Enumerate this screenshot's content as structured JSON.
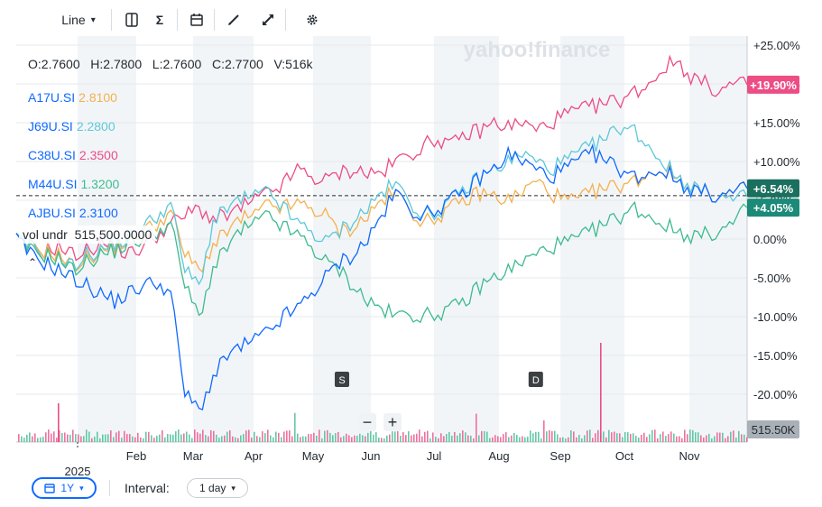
{
  "toolbar": {
    "chart_type_label": "Line",
    "icons": [
      "compare-icon",
      "indicators-icon",
      "events-calendar-icon",
      "draw-icon",
      "fullscreen-icon",
      "settings-icon"
    ]
  },
  "ohlc": {
    "open": "O:2.7600",
    "high": "H:2.7800",
    "low": "L:2.7600",
    "close": "C:2.7700",
    "volume": "V:516k"
  },
  "legend": [
    {
      "symbol": "A17U.SI",
      "value": "2.8100",
      "color": "#f5b04f"
    },
    {
      "symbol": "J69U.SI",
      "value": "2.2800",
      "color": "#5cc8d9"
    },
    {
      "symbol": "C38U.SI",
      "value": "2.3500",
      "color": "#ec4d84"
    },
    {
      "symbol": "M44U.SI",
      "value": "1.3200",
      "color": "#3dbb8e"
    },
    {
      "symbol": "AJBU.SI",
      "value": "2.3100",
      "color": "#0f69ff"
    }
  ],
  "volume_legend": {
    "label": "vol undr",
    "value": "515,500.0000"
  },
  "watermark": "yahoo!finance",
  "footer": {
    "range_label": "1Y",
    "interval_label": "Interval:",
    "interval_value": "1 day",
    "zoom_out": "−",
    "zoom_in": "+"
  },
  "chart_data": {
    "type": "line",
    "title": "",
    "xlabel": "",
    "ylabel": "",
    "x_ticks": [
      "Feb",
      "Mar",
      "Apr",
      "May",
      "Jun",
      "Jul",
      "Aug",
      "Sep",
      "Oct",
      "Nov"
    ],
    "x_year_label": "2025",
    "y_ticks": [
      "+25.00%",
      "+20.00%",
      "+15.00%",
      "+10.00%",
      "+5.00%",
      "0.00%",
      "-5.00%",
      "-10.00%",
      "-15.00%",
      "-20.00%"
    ],
    "ylim": [
      -25,
      25
    ],
    "y_unit": "%",
    "grid": true,
    "reference_line": 5.6,
    "last_value_badges": [
      {
        "text": "+19.90%",
        "value": 19.9,
        "color": "#ec4d84"
      },
      {
        "text": "+6.54%",
        "value": 6.54,
        "color": "#1a6f5e"
      },
      {
        "text": "+4.05%",
        "value": 4.05,
        "color": "#1b8a78"
      }
    ],
    "volume_badge": "515.50K",
    "event_markers": [
      {
        "label": "S",
        "month_index": 3.5
      },
      {
        "label": "D",
        "month_index": 6.6
      }
    ],
    "series": [
      {
        "name": "C38U.SI",
        "color": "#ec4d84",
        "values": [
          0.0,
          -1.0,
          -1.5,
          -1.0,
          -2.0,
          -1.5,
          -0.5,
          -1.0,
          -2.0,
          -1.0,
          0.5,
          2.0,
          3.0,
          4.0,
          2.5,
          3.0,
          4.0,
          5.0,
          6.0,
          7.0,
          9.0,
          8.0,
          7.5,
          8.5,
          9.0,
          8.5,
          8.5,
          10.0,
          11.0,
          12.0,
          13.0,
          12.0,
          13.5,
          14.0,
          15.0,
          14.5,
          15.0,
          14.0,
          15.0,
          16.0,
          16.5,
          17.0,
          17.5,
          18.0,
          19.0,
          20.0,
          22.0,
          23.0,
          21.0,
          20.0,
          19.0,
          20.0,
          19.9
        ]
      },
      {
        "name": "A17U.SI",
        "color": "#f5b04f",
        "values": [
          0.0,
          -1.0,
          -1.5,
          -2.0,
          -3.5,
          -2.5,
          -1.5,
          -1.0,
          0.0,
          1.0,
          2.0,
          3.5,
          -2.0,
          -4.0,
          -1.0,
          1.0,
          2.5,
          3.0,
          4.5,
          4.0,
          4.5,
          4.0,
          3.0,
          1.0,
          1.5,
          3.0,
          5.0,
          6.0,
          4.0,
          2.0,
          3.0,
          4.0,
          5.0,
          6.0,
          5.5,
          5.0,
          6.0,
          7.5,
          6.0,
          5.0,
          5.0,
          6.0,
          6.5,
          7.0,
          7.5,
          8.5,
          9.0,
          8.0,
          7.0,
          6.0,
          5.5,
          6.0,
          6.5
        ]
      },
      {
        "name": "J69U.SI",
        "color": "#5cc8d9",
        "values": [
          0.0,
          -1.0,
          -2.0,
          -2.5,
          -3.5,
          -2.0,
          -1.5,
          -0.5,
          0.0,
          1.5,
          3.0,
          4.5,
          -4.0,
          -6.0,
          2.0,
          4.0,
          5.0,
          5.5,
          6.0,
          4.0,
          2.0,
          1.0,
          -0.5,
          1.0,
          2.5,
          4.0,
          6.0,
          7.0,
          5.0,
          3.0,
          3.5,
          5.0,
          6.5,
          8.0,
          9.0,
          10.0,
          11.0,
          10.0,
          9.0,
          10.0,
          11.0,
          12.0,
          13.0,
          14.5,
          14.0,
          12.0,
          10.0,
          8.0,
          7.0,
          6.0,
          5.5,
          5.0,
          5.5
        ]
      },
      {
        "name": "M44U.SI",
        "color": "#3dbb8e",
        "values": [
          0.0,
          -1.5,
          -2.0,
          -2.5,
          -4.0,
          -3.0,
          -2.0,
          -1.5,
          -0.5,
          0.0,
          1.0,
          2.0,
          -6.0,
          -10.0,
          -4.0,
          -1.0,
          1.0,
          2.0,
          3.0,
          1.5,
          0.5,
          -1.0,
          -3.0,
          -4.0,
          -6.0,
          -8.0,
          -9.0,
          -10.0,
          -9.5,
          -10.0,
          -9.5,
          -9.0,
          -8.0,
          -6.0,
          -5.0,
          -4.0,
          -3.0,
          -2.0,
          -1.0,
          -0.5,
          0.0,
          1.0,
          2.0,
          3.0,
          4.0,
          3.0,
          2.0,
          1.0,
          0.5,
          0.5,
          1.0,
          2.0,
          4.05
        ]
      },
      {
        "name": "AJBU.SI",
        "color": "#0f69ff",
        "values": [
          0.0,
          -2.0,
          -3.0,
          -4.0,
          -5.0,
          -6.0,
          -7.0,
          -8.0,
          -7.0,
          -6.0,
          -5.5,
          -7.0,
          -20.0,
          -22.0,
          -18.0,
          -15.0,
          -14.0,
          -13.0,
          -12.0,
          -10.0,
          -9.0,
          -7.0,
          -5.0,
          -3.0,
          -2.0,
          0.0,
          3.0,
          6.0,
          4.0,
          3.0,
          4.0,
          5.0,
          6.0,
          8.0,
          9.0,
          11.0,
          10.0,
          9.0,
          8.0,
          9.0,
          10.0,
          11.0,
          10.0,
          9.0,
          8.0,
          8.5,
          9.0,
          7.5,
          6.5,
          6.0,
          5.5,
          6.0,
          6.54
        ]
      }
    ]
  }
}
